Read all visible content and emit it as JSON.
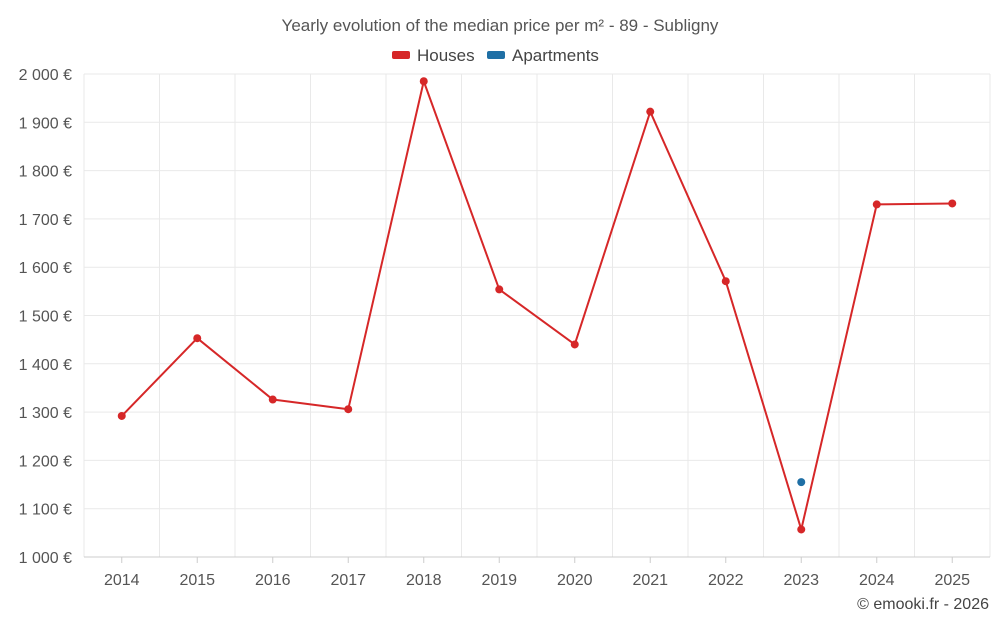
{
  "chart_data": {
    "type": "line",
    "title": "Yearly evolution of the median price per m² - 89 - Subligny",
    "x": [
      "2014",
      "2015",
      "2016",
      "2017",
      "2018",
      "2019",
      "2020",
      "2021",
      "2022",
      "2023",
      "2024",
      "2025"
    ],
    "series": [
      {
        "name": "Houses",
        "color": "#d62728",
        "values": [
          1292,
          1453,
          1326,
          1306,
          1985,
          1554,
          1440,
          1922,
          1571,
          1057,
          1730,
          1732
        ]
      },
      {
        "name": "Apartments",
        "color": "#1f6fa5",
        "values": [
          null,
          null,
          null,
          null,
          null,
          null,
          null,
          null,
          null,
          1155,
          null,
          null
        ]
      }
    ],
    "ylim": [
      1000,
      2000
    ],
    "yticks": [
      1000,
      1100,
      1200,
      1300,
      1400,
      1500,
      1600,
      1700,
      1800,
      1900,
      2000
    ],
    "ytick_labels": [
      "1 000 €",
      "1 100 €",
      "1 200 €",
      "1 300 €",
      "1 400 €",
      "1 500 €",
      "1 600 €",
      "1 700 €",
      "1 800 €",
      "1 900 €",
      "2 000 €"
    ],
    "grid": true,
    "legend_position": "top-center",
    "xlabel": "",
    "ylabel": ""
  },
  "credit": "© emooki.fr - 2026"
}
